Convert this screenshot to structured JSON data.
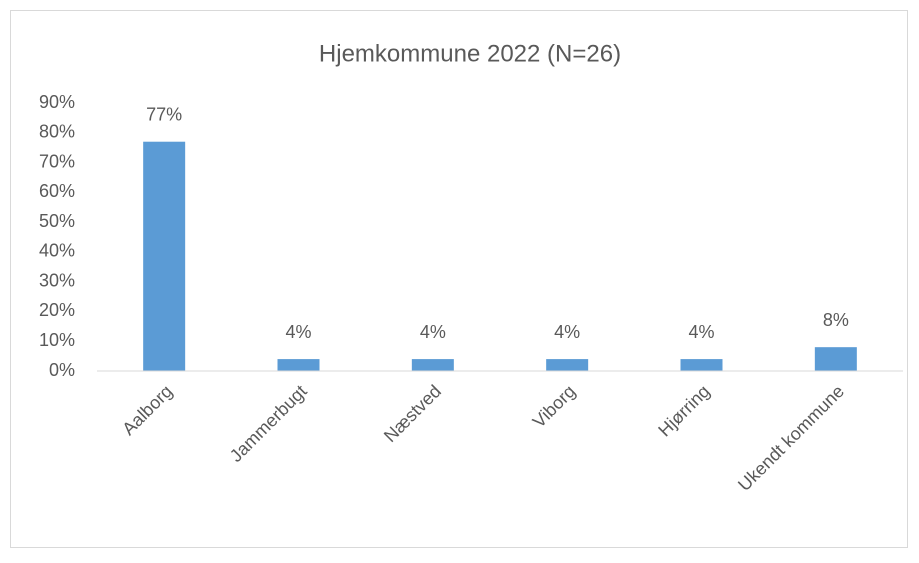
{
  "chart_data": {
    "type": "bar",
    "title": "Hjemkommune 2022 (N=26)",
    "categories": [
      "Aalborg",
      "Jammerbugt",
      "Næstved",
      "Viborg",
      "Hjørring",
      "Ukendt kommune"
    ],
    "values": [
      77,
      4,
      4,
      4,
      4,
      8
    ],
    "value_labels": [
      "77%",
      "4%",
      "4%",
      "4%",
      "4%",
      "8%"
    ],
    "color": "#5b9bd5",
    "ylim": [
      0,
      90
    ],
    "yticks": [
      {
        "value": 0,
        "label": "0%"
      },
      {
        "value": 10,
        "label": "10%"
      },
      {
        "value": 20,
        "label": "20%"
      },
      {
        "value": 30,
        "label": "30%"
      },
      {
        "value": 40,
        "label": "40%"
      },
      {
        "value": 50,
        "label": "50%"
      },
      {
        "value": 60,
        "label": "60%"
      },
      {
        "value": 70,
        "label": "70%"
      },
      {
        "value": 80,
        "label": "80%"
      },
      {
        "value": 90,
        "label": "90%"
      }
    ],
    "grid": false
  }
}
